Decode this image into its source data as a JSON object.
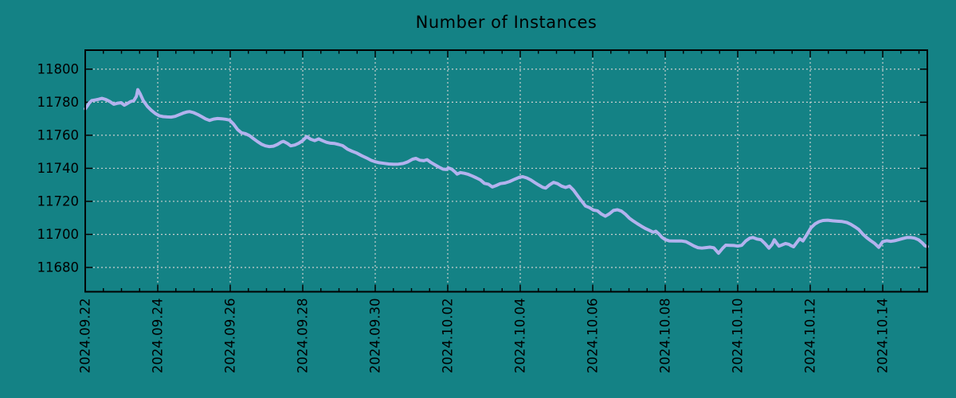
{
  "colors": {
    "background": "#148285",
    "line": "#b3b2ee",
    "grid": "#c9cfcf",
    "text": "#000000",
    "frame": "#000000"
  },
  "chart_data": {
    "type": "line",
    "title": "Number of Instances",
    "xlabel": "",
    "ylabel": "",
    "grid": "dashed, both axes",
    "legend": "none",
    "x_unit": "days since 2024-09-22",
    "x_range_days": [
      0,
      23.23
    ],
    "y_range": [
      11665.3,
      11811.5
    ],
    "y_ticks": [
      11680,
      11700,
      11720,
      11740,
      11760,
      11780,
      11800
    ],
    "x_minor_step_days": 0.5,
    "x_major_ticks": [
      {
        "day": 0,
        "label": "2024.09.22"
      },
      {
        "day": 2,
        "label": "2024.09.24"
      },
      {
        "day": 4,
        "label": "2024.09.26"
      },
      {
        "day": 6,
        "label": "2024.09.28"
      },
      {
        "day": 8,
        "label": "2024.09.30"
      },
      {
        "day": 10,
        "label": "2024.10.02"
      },
      {
        "day": 12,
        "label": "2024.10.04"
      },
      {
        "day": 14,
        "label": "2024.10.06"
      },
      {
        "day": 16,
        "label": "2024.10.08"
      },
      {
        "day": 18,
        "label": "2024.10.10"
      },
      {
        "day": 20,
        "label": "2024.10.12"
      },
      {
        "day": 22,
        "label": "2024.10.14"
      }
    ],
    "series": [
      {
        "name": "Number of Instances",
        "points": [
          [
            0,
            11776
          ],
          [
            0.06,
            11777.8
          ],
          [
            0.11,
            11779.5
          ],
          [
            0.18,
            11781
          ],
          [
            0.29,
            11781.4
          ],
          [
            0.37,
            11781.8
          ],
          [
            0.46,
            11782.3
          ],
          [
            0.57,
            11781.6
          ],
          [
            0.68,
            11780.4
          ],
          [
            0.79,
            11778.8
          ],
          [
            0.9,
            11779.4
          ],
          [
            0.99,
            11779.7
          ],
          [
            1.08,
            11778.2
          ],
          [
            1.16,
            11779.2
          ],
          [
            1.25,
            11780.4
          ],
          [
            1.34,
            11781
          ],
          [
            1.41,
            11783.5
          ],
          [
            1.45,
            11787.6
          ],
          [
            1.52,
            11784.8
          ],
          [
            1.6,
            11781
          ],
          [
            1.71,
            11777.6
          ],
          [
            1.82,
            11775.2
          ],
          [
            1.93,
            11773.2
          ],
          [
            2.04,
            11771.8
          ],
          [
            2.15,
            11771.3
          ],
          [
            2.26,
            11771.1
          ],
          [
            2.37,
            11771
          ],
          [
            2.48,
            11771.4
          ],
          [
            2.59,
            11772.4
          ],
          [
            2.7,
            11773.4
          ],
          [
            2.81,
            11774.1
          ],
          [
            2.88,
            11774.3
          ],
          [
            2.99,
            11773.7
          ],
          [
            3.1,
            11772.6
          ],
          [
            3.21,
            11771.3
          ],
          [
            3.32,
            11769.9
          ],
          [
            3.43,
            11769
          ],
          [
            3.54,
            11769.8
          ],
          [
            3.65,
            11770.1
          ],
          [
            3.76,
            11770
          ],
          [
            3.87,
            11769.7
          ],
          [
            3.98,
            11769.2
          ],
          [
            4.09,
            11766.8
          ],
          [
            4.2,
            11763.5
          ],
          [
            4.31,
            11761.5
          ],
          [
            4.42,
            11760.9
          ],
          [
            4.53,
            11759.8
          ],
          [
            4.64,
            11758
          ],
          [
            4.75,
            11756.2
          ],
          [
            4.86,
            11754.6
          ],
          [
            4.97,
            11753.6
          ],
          [
            5.08,
            11753.1
          ],
          [
            5.19,
            11753.4
          ],
          [
            5.3,
            11754.4
          ],
          [
            5.41,
            11755.9
          ],
          [
            5.47,
            11756.3
          ],
          [
            5.58,
            11755
          ],
          [
            5.67,
            11753.6
          ],
          [
            5.78,
            11754.1
          ],
          [
            5.89,
            11755.2
          ],
          [
            6,
            11756.8
          ],
          [
            6.11,
            11759.2
          ],
          [
            6.22,
            11757.6
          ],
          [
            6.33,
            11756.8
          ],
          [
            6.44,
            11757.8
          ],
          [
            6.55,
            11756.7
          ],
          [
            6.66,
            11755.7
          ],
          [
            6.77,
            11755.2
          ],
          [
            6.88,
            11755
          ],
          [
            6.99,
            11754.4
          ],
          [
            7.1,
            11753.7
          ],
          [
            7.23,
            11751.6
          ],
          [
            7.36,
            11750.3
          ],
          [
            7.49,
            11749.2
          ],
          [
            7.63,
            11747.6
          ],
          [
            7.76,
            11746.3
          ],
          [
            7.89,
            11744.8
          ],
          [
            7.98,
            11744.1
          ],
          [
            8.11,
            11743.4
          ],
          [
            8.24,
            11743
          ],
          [
            8.37,
            11742.6
          ],
          [
            8.51,
            11742.4
          ],
          [
            8.64,
            11742.5
          ],
          [
            8.77,
            11742.9
          ],
          [
            8.9,
            11743.9
          ],
          [
            9.03,
            11745.5
          ],
          [
            9.12,
            11746
          ],
          [
            9.23,
            11744.9
          ],
          [
            9.34,
            11744.6
          ],
          [
            9.43,
            11745.2
          ],
          [
            9.54,
            11743.5
          ],
          [
            9.65,
            11742.1
          ],
          [
            9.76,
            11740.7
          ],
          [
            9.87,
            11739.5
          ],
          [
            9.96,
            11739.3
          ],
          [
            10.02,
            11740.2
          ],
          [
            10.11,
            11739.5
          ],
          [
            10.2,
            11737.8
          ],
          [
            10.26,
            11736.5
          ],
          [
            10.35,
            11737.4
          ],
          [
            10.46,
            11737
          ],
          [
            10.57,
            11736.3
          ],
          [
            10.68,
            11735.3
          ],
          [
            10.79,
            11734.2
          ],
          [
            10.9,
            11733
          ],
          [
            11.01,
            11730.9
          ],
          [
            11.12,
            11730.4
          ],
          [
            11.23,
            11728.7
          ],
          [
            11.34,
            11729.6
          ],
          [
            11.45,
            11730.7
          ],
          [
            11.58,
            11731.1
          ],
          [
            11.71,
            11732
          ],
          [
            11.85,
            11733.4
          ],
          [
            11.98,
            11734.6
          ],
          [
            12.07,
            11734.9
          ],
          [
            12.18,
            11734.2
          ],
          [
            12.29,
            11733
          ],
          [
            12.4,
            11731.4
          ],
          [
            12.51,
            11729.9
          ],
          [
            12.62,
            11728.5
          ],
          [
            12.7,
            11728
          ],
          [
            12.81,
            11730
          ],
          [
            12.92,
            11731.5
          ],
          [
            13.03,
            11730.7
          ],
          [
            13.14,
            11729.2
          ],
          [
            13.25,
            11728.4
          ],
          [
            13.36,
            11729.2
          ],
          [
            13.47,
            11726.8
          ],
          [
            13.58,
            11723.5
          ],
          [
            13.69,
            11720.3
          ],
          [
            13.8,
            11717.2
          ],
          [
            13.91,
            11716.2
          ],
          [
            14.02,
            11714.7
          ],
          [
            14.13,
            11714.3
          ],
          [
            14.24,
            11712.3
          ],
          [
            14.35,
            11711
          ],
          [
            14.46,
            11712.5
          ],
          [
            14.57,
            11714.5
          ],
          [
            14.68,
            11714.9
          ],
          [
            14.79,
            11714.1
          ],
          [
            14.9,
            11712.2
          ],
          [
            15.01,
            11709.8
          ],
          [
            15.12,
            11708.1
          ],
          [
            15.23,
            11706.5
          ],
          [
            15.34,
            11705
          ],
          [
            15.45,
            11703.6
          ],
          [
            15.56,
            11702.5
          ],
          [
            15.67,
            11701.3
          ],
          [
            15.74,
            11701.9
          ],
          [
            15.82,
            11700.4
          ],
          [
            15.91,
            11698.2
          ],
          [
            16,
            11696.9
          ],
          [
            16.11,
            11696.1
          ],
          [
            16.29,
            11696
          ],
          [
            16.46,
            11696
          ],
          [
            16.57,
            11695.6
          ],
          [
            16.68,
            11694.3
          ],
          [
            16.79,
            11693
          ],
          [
            16.9,
            11692
          ],
          [
            17.01,
            11691.7
          ],
          [
            17.12,
            11692
          ],
          [
            17.23,
            11692.3
          ],
          [
            17.34,
            11691.9
          ],
          [
            17.47,
            11688.6
          ],
          [
            17.58,
            11691.5
          ],
          [
            17.67,
            11693.5
          ],
          [
            17.78,
            11693.4
          ],
          [
            17.89,
            11693.3
          ],
          [
            18,
            11692.9
          ],
          [
            18.11,
            11693.4
          ],
          [
            18.22,
            11696
          ],
          [
            18.33,
            11697.7
          ],
          [
            18.42,
            11698.1
          ],
          [
            18.53,
            11697.2
          ],
          [
            18.64,
            11696.8
          ],
          [
            18.75,
            11694.5
          ],
          [
            18.86,
            11691.7
          ],
          [
            18.95,
            11694
          ],
          [
            19.01,
            11696.7
          ],
          [
            19.08,
            11694.5
          ],
          [
            19.14,
            11692.9
          ],
          [
            19.23,
            11693.7
          ],
          [
            19.32,
            11694.5
          ],
          [
            19.41,
            11694
          ],
          [
            19.47,
            11693.2
          ],
          [
            19.54,
            11692.5
          ],
          [
            19.63,
            11695.1
          ],
          [
            19.71,
            11697.4
          ],
          [
            19.8,
            11696.1
          ],
          [
            19.91,
            11699.9
          ],
          [
            20.02,
            11704
          ],
          [
            20.13,
            11706.3
          ],
          [
            20.24,
            11707.7
          ],
          [
            20.35,
            11708.4
          ],
          [
            20.48,
            11708.6
          ],
          [
            20.62,
            11708.2
          ],
          [
            20.75,
            11708
          ],
          [
            20.88,
            11707.8
          ],
          [
            21.01,
            11707.2
          ],
          [
            21.12,
            11706.1
          ],
          [
            21.23,
            11704.6
          ],
          [
            21.34,
            11702.9
          ],
          [
            21.45,
            11700.2
          ],
          [
            21.56,
            11698
          ],
          [
            21.67,
            11696.2
          ],
          [
            21.78,
            11694.5
          ],
          [
            21.89,
            11692.2
          ],
          [
            22,
            11695.6
          ],
          [
            22.11,
            11696.2
          ],
          [
            22.22,
            11695.8
          ],
          [
            22.33,
            11696.2
          ],
          [
            22.44,
            11696.8
          ],
          [
            22.55,
            11697.5
          ],
          [
            22.66,
            11698.1
          ],
          [
            22.77,
            11698.1
          ],
          [
            22.88,
            11697.7
          ],
          [
            22.99,
            11696.7
          ],
          [
            23.1,
            11694.7
          ],
          [
            23.16,
            11693.2
          ],
          [
            23.23,
            11692.6
          ]
        ]
      }
    ]
  }
}
